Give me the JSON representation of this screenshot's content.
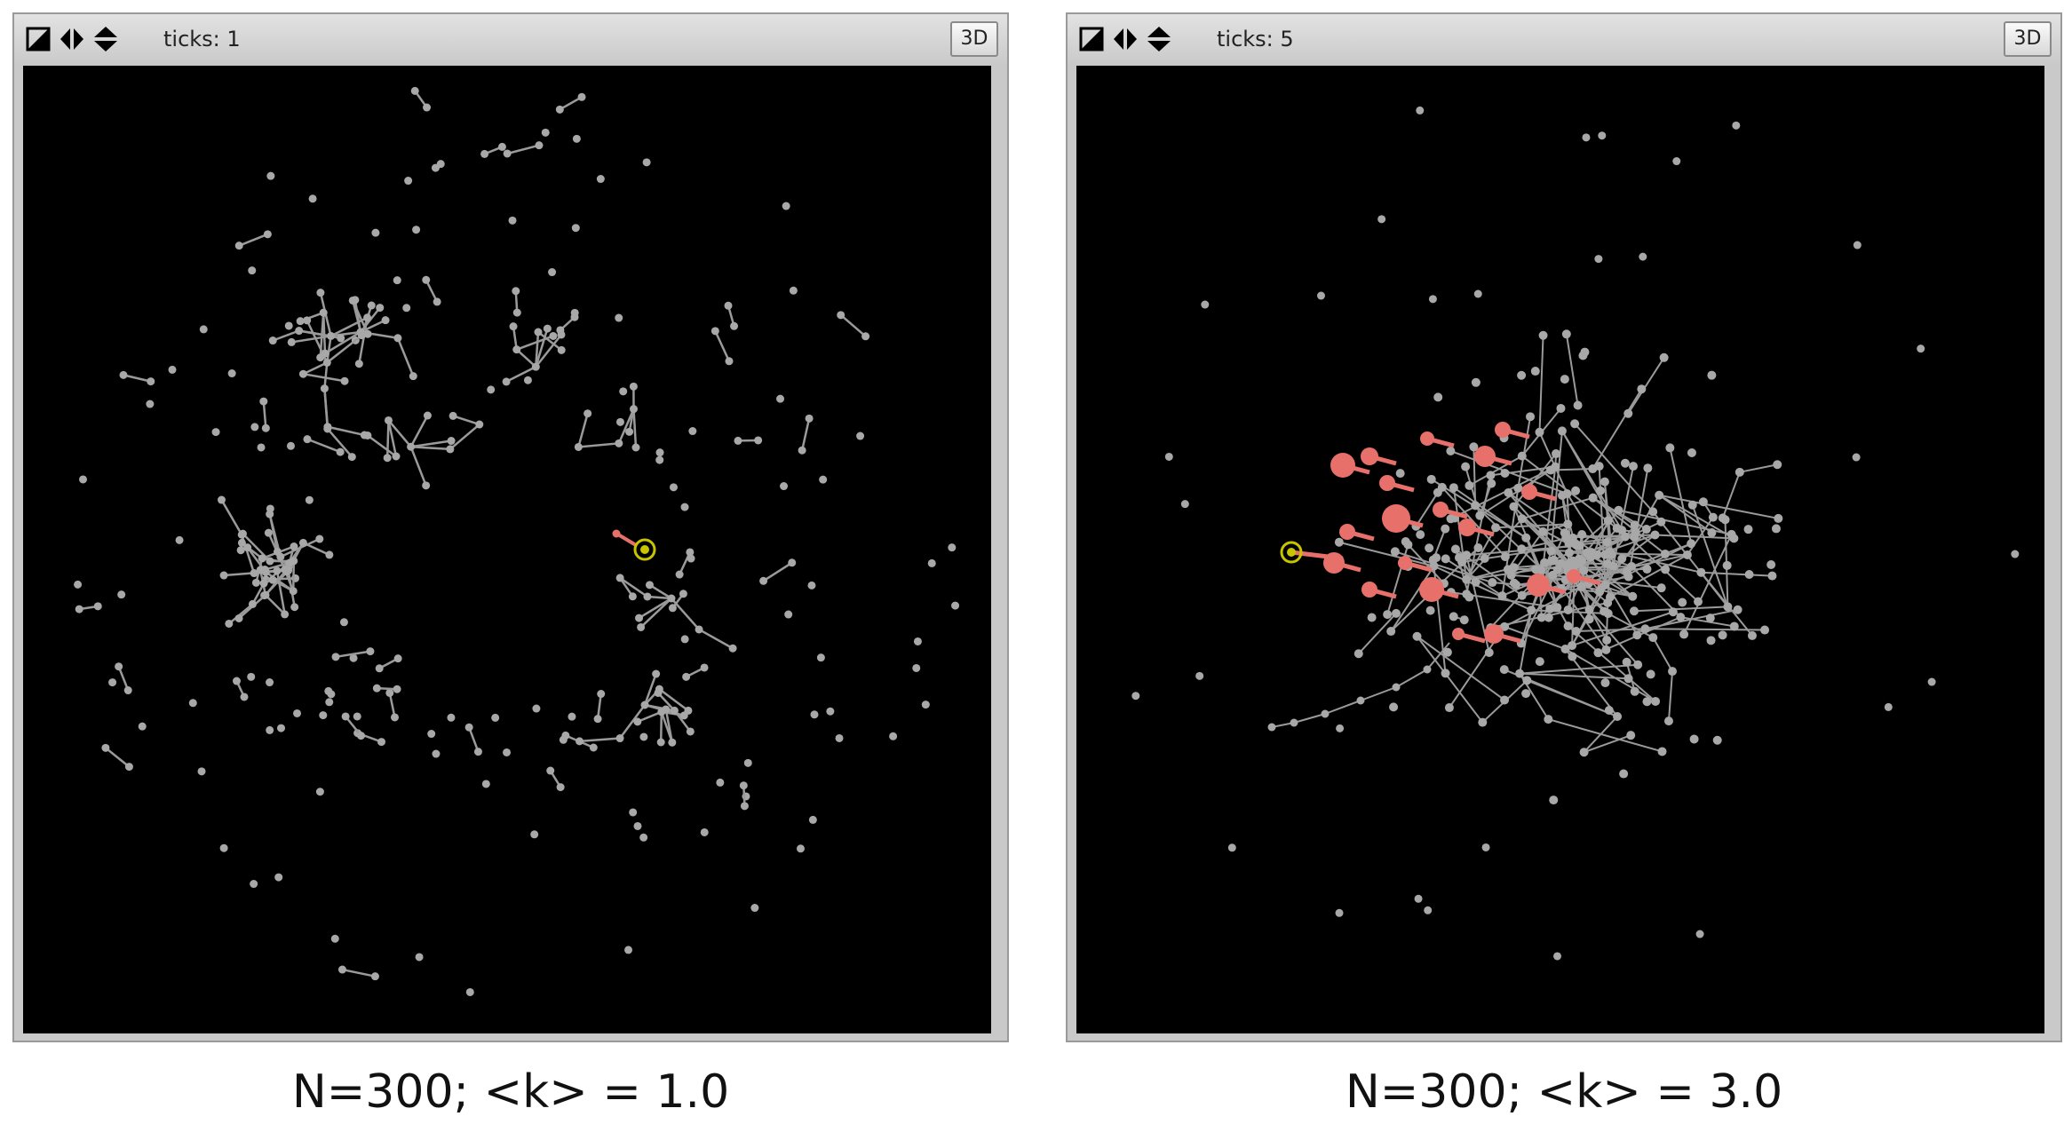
{
  "panels": [
    {
      "ticks_label": "ticks: 1",
      "button_3d": "3D",
      "caption": "N=300; <k> = 1.0"
    },
    {
      "ticks_label": "ticks: 5",
      "button_3d": "3D",
      "caption": "N=300; <k> = 3.0"
    }
  ],
  "colors": {
    "node": "#a8a8a8",
    "link": "#9a9a9a",
    "infected": "#e8706a",
    "seed": "#c8c400",
    "world_bg": "#000000"
  },
  "icons": [
    "world-edge-icon",
    "horizontal-wrap-icon",
    "vertical-wrap-icon"
  ]
}
